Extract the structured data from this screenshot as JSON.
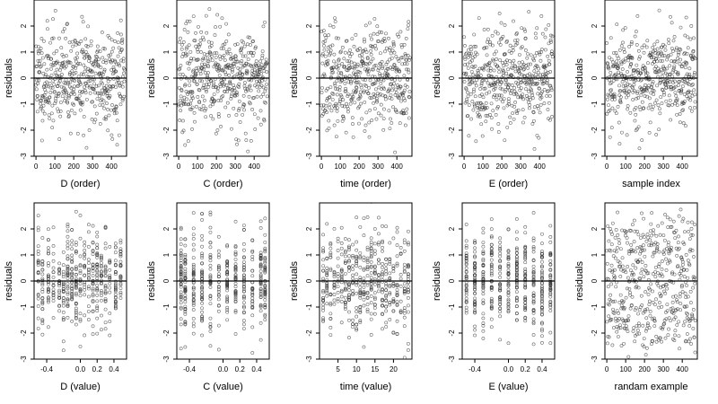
{
  "chart_data": [
    {
      "type": "scatter",
      "xlabel": "D (order)",
      "ylabel": "residuals",
      "xlim": [
        -10,
        480
      ],
      "ylim": [
        -3,
        3
      ],
      "xticks": [
        0,
        100,
        200,
        300,
        400
      ],
      "xticklabels": [
        "0",
        "100",
        "200",
        "300",
        "400"
      ],
      "yticks": [
        -3,
        -2,
        -1,
        0,
        1,
        2
      ],
      "yticklabels": [
        "-3",
        "-2",
        "-1",
        "0",
        "1",
        "2"
      ],
      "reference_line": {
        "y": 0
      },
      "mode": "order",
      "seed": 11
    },
    {
      "type": "scatter",
      "xlabel": "C (order)",
      "ylabel": "residuals",
      "xlim": [
        -10,
        480
      ],
      "ylim": [
        -3,
        3
      ],
      "xticks": [
        0,
        100,
        200,
        300,
        400
      ],
      "xticklabels": [
        "0",
        "100",
        "200",
        "300",
        "400"
      ],
      "yticks": [
        -3,
        -2,
        -1,
        0,
        1,
        2
      ],
      "yticklabels": [
        "-3",
        "-2",
        "-1",
        "0",
        "1",
        "2"
      ],
      "reference_line": {
        "y": 0
      },
      "mode": "order",
      "seed": 23
    },
    {
      "type": "scatter",
      "xlabel": "time (order)",
      "ylabel": "residuals",
      "xlim": [
        -10,
        480
      ],
      "ylim": [
        -3,
        3
      ],
      "xticks": [
        0,
        100,
        200,
        300,
        400
      ],
      "xticklabels": [
        "0",
        "100",
        "200",
        "300",
        "400"
      ],
      "yticks": [
        -3,
        -2,
        -1,
        0,
        1,
        2
      ],
      "yticklabels": [
        "-3",
        "-2",
        "-1",
        "0",
        "1",
        "2"
      ],
      "reference_line": {
        "y": 0
      },
      "mode": "order",
      "seed": 37
    },
    {
      "type": "scatter",
      "xlabel": "E (order)",
      "ylabel": "residuals",
      "xlim": [
        -10,
        480
      ],
      "ylim": [
        -3,
        3
      ],
      "xticks": [
        0,
        100,
        200,
        300,
        400
      ],
      "xticklabels": [
        "0",
        "100",
        "200",
        "300",
        "400"
      ],
      "yticks": [
        -3,
        -2,
        -1,
        0,
        1,
        2
      ],
      "yticklabels": [
        "-3",
        "-2",
        "-1",
        "0",
        "1",
        "2"
      ],
      "reference_line": {
        "y": 0
      },
      "mode": "order",
      "seed": 41
    },
    {
      "type": "scatter",
      "xlabel": "sample index",
      "ylabel": "residuals",
      "xlim": [
        -10,
        480
      ],
      "ylim": [
        -3,
        3
      ],
      "xticks": [
        0,
        100,
        200,
        300,
        400
      ],
      "xticklabels": [
        "0",
        "100",
        "200",
        "300",
        "400"
      ],
      "yticks": [
        -3,
        -2,
        -1,
        0,
        1,
        2
      ],
      "yticklabels": [
        "-3",
        "-2",
        "-1",
        "0",
        "1",
        "2"
      ],
      "reference_line": {
        "y": 0
      },
      "mode": "order",
      "seed": 53
    },
    {
      "type": "scatter",
      "xlabel": "D (value)",
      "ylabel": "residuals",
      "xlim": [
        -0.55,
        0.55
      ],
      "ylim": [
        -3,
        3
      ],
      "xticks": [
        -0.4,
        0,
        0.2,
        0.4
      ],
      "xticklabels": [
        "-0.4",
        "0.0",
        "0.2",
        "0.4"
      ],
      "yticks": [
        -3,
        -2,
        -1,
        0,
        1,
        2
      ],
      "yticklabels": [
        "-3",
        "-2",
        "-1",
        "0",
        "1",
        "2"
      ],
      "reference_line": {
        "y": 0
      },
      "mode": "discrete",
      "levels": [
        -0.5,
        -0.45,
        -0.38,
        -0.32,
        -0.25,
        -0.2,
        -0.15,
        -0.1,
        -0.05,
        0,
        0.05,
        0.1,
        0.15,
        0.2,
        0.25,
        0.3,
        0.35,
        0.42,
        0.48
      ],
      "seed": 61
    },
    {
      "type": "scatter",
      "xlabel": "C (value)",
      "ylabel": "residuals",
      "xlim": [
        -0.55,
        0.55
      ],
      "ylim": [
        -3,
        3
      ],
      "xticks": [
        -0.4,
        0,
        0.2,
        0.4
      ],
      "xticklabels": [
        "-0.4",
        "0.0",
        "0.2",
        "0.4"
      ],
      "yticks": [
        -3,
        -2,
        -1,
        0,
        1,
        2
      ],
      "yticklabels": [
        "-3",
        "-2",
        "-1",
        "0",
        "1",
        "2"
      ],
      "reference_line": {
        "y": 0
      },
      "mode": "discrete",
      "levels": [
        -0.5,
        -0.45,
        -0.35,
        -0.25,
        -0.15,
        -0.05,
        0.05,
        0.15,
        0.25,
        0.35,
        0.45,
        0.5
      ],
      "seed": 67
    },
    {
      "type": "scatter",
      "xlabel": "time (value)",
      "ylabel": "residuals",
      "xlim": [
        0,
        25
      ],
      "ylim": [
        -3,
        3
      ],
      "xticks": [
        5,
        10,
        15,
        20
      ],
      "xticklabels": [
        "5",
        "10",
        "15",
        "20"
      ],
      "yticks": [
        -3,
        -2,
        -1,
        0,
        1,
        2
      ],
      "yticklabels": [
        "-3",
        "-2",
        "-1",
        "0",
        "1",
        "2"
      ],
      "reference_line": {
        "y": 0
      },
      "mode": "discrete",
      "levels": [
        1,
        2,
        3,
        4,
        5,
        6,
        7,
        8,
        9,
        10,
        11,
        12,
        13,
        14,
        15,
        16,
        17,
        18,
        19,
        20,
        21,
        22,
        23,
        24
      ],
      "seed": 71
    },
    {
      "type": "scatter",
      "xlabel": "E (value)",
      "ylabel": "residuals",
      "xlim": [
        -0.55,
        0.55
      ],
      "ylim": [
        -3,
        3
      ],
      "xticks": [
        -0.4,
        0,
        0.2,
        0.4
      ],
      "xticklabels": [
        "-0.4",
        "0.0",
        "0.2",
        "0.4"
      ],
      "yticks": [
        -3,
        -2,
        -1,
        0,
        1,
        2
      ],
      "yticklabels": [
        "-3",
        "-2",
        "-1",
        "0",
        "1",
        "2"
      ],
      "reference_line": {
        "y": 0
      },
      "mode": "discrete",
      "levels": [
        -0.5,
        -0.4,
        -0.3,
        -0.2,
        -0.1,
        0,
        0.1,
        0.2,
        0.3,
        0.4,
        0.5
      ],
      "seed": 79
    },
    {
      "type": "scatter",
      "xlabel": "randam example",
      "ylabel": "residuals",
      "xlim": [
        -10,
        480
      ],
      "ylim": [
        -3,
        3
      ],
      "xticks": [
        0,
        100,
        200,
        300,
        400
      ],
      "xticklabels": [
        "0",
        "100",
        "200",
        "300",
        "400"
      ],
      "yticks": [
        -3,
        -2,
        -1,
        0,
        1,
        2
      ],
      "yticklabels": [
        "-3",
        "-2",
        "-1",
        "0",
        "1",
        "2"
      ],
      "reference_line": {
        "y": 0
      },
      "mode": "random",
      "seed": 89
    }
  ]
}
